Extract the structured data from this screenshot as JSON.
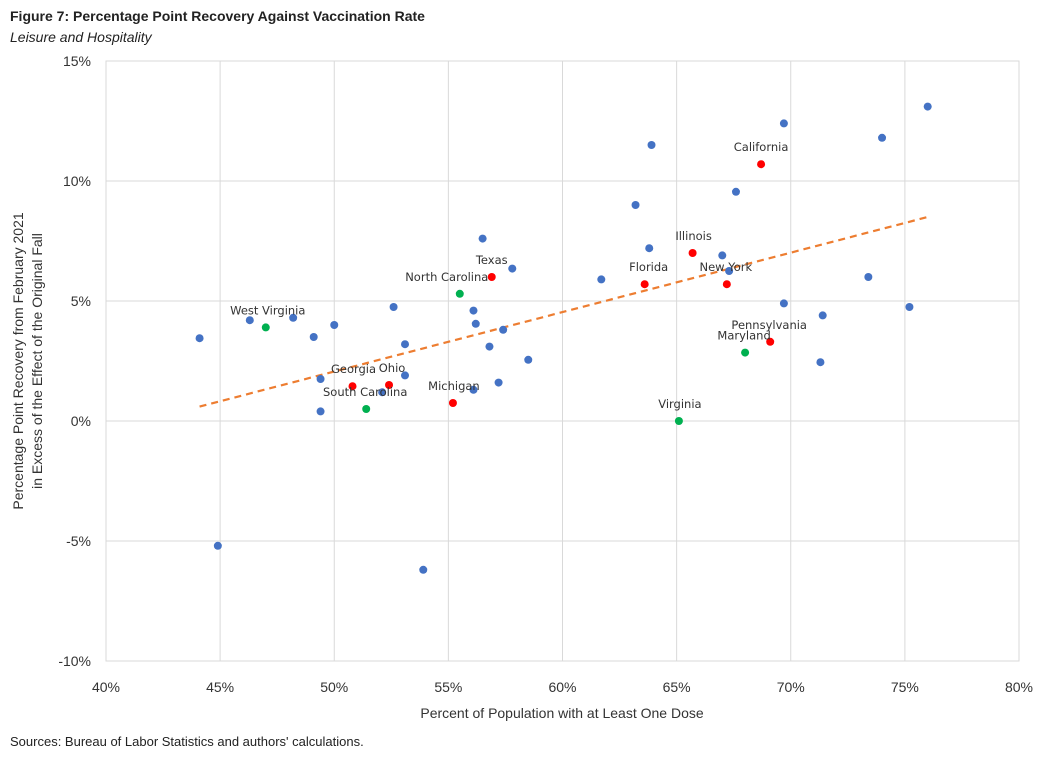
{
  "figure": {
    "title": "Figure 7: Percentage Point Recovery Against Vaccination Rate",
    "subtitle": "Leisure and Hospitality",
    "source": "Sources: Bureau of Labor Statistics and authors' calculations."
  },
  "chart_data": {
    "type": "scatter",
    "xlabel": "Percent of Population with at Least One Dose",
    "ylabel_lines": [
      "Percentage Point Recovery from February 2021",
      "in Excess of the Effect of the Original Fall"
    ],
    "xlim": [
      40,
      80
    ],
    "ylim": [
      -10,
      15
    ],
    "x_ticks": [
      40,
      45,
      50,
      55,
      60,
      65,
      70,
      75,
      80
    ],
    "x_tick_labels": [
      "40%",
      "45%",
      "50%",
      "55%",
      "60%",
      "65%",
      "70%",
      "75%",
      "80%"
    ],
    "y_ticks": [
      15,
      10,
      5,
      0,
      -5,
      -10
    ],
    "y_tick_labels": [
      "15%",
      "10%",
      "5%",
      "0%",
      "-5%",
      "-10%"
    ],
    "grid": true,
    "colors": {
      "other": "#4472c4",
      "highlight": "#ff0000",
      "green": "#00b050",
      "trend": "#ed7d31",
      "grid": "#d9d9d9"
    },
    "trendline": {
      "x": [
        44.1,
        76.0
      ],
      "y": [
        0.6,
        8.5
      ]
    },
    "points": [
      {
        "x": 44.1,
        "y": 3.45,
        "group": "other"
      },
      {
        "x": 44.9,
        "y": -5.2,
        "group": "other"
      },
      {
        "x": 46.3,
        "y": 4.2,
        "group": "other"
      },
      {
        "x": 48.2,
        "y": 4.3,
        "group": "other"
      },
      {
        "x": 49.1,
        "y": 3.5,
        "group": "other"
      },
      {
        "x": 49.4,
        "y": 1.75,
        "group": "other"
      },
      {
        "x": 49.4,
        "y": 0.4,
        "group": "other"
      },
      {
        "x": 50.0,
        "y": 4.0,
        "group": "other"
      },
      {
        "x": 52.1,
        "y": 1.2,
        "group": "other"
      },
      {
        "x": 52.6,
        "y": 4.75,
        "group": "other"
      },
      {
        "x": 53.1,
        "y": 3.2,
        "group": "other"
      },
      {
        "x": 53.1,
        "y": 1.9,
        "group": "other"
      },
      {
        "x": 53.9,
        "y": -6.2,
        "group": "other"
      },
      {
        "x": 56.1,
        "y": 4.6,
        "group": "other"
      },
      {
        "x": 56.2,
        "y": 4.05,
        "group": "other"
      },
      {
        "x": 56.1,
        "y": 1.3,
        "group": "other"
      },
      {
        "x": 56.5,
        "y": 7.6,
        "group": "other"
      },
      {
        "x": 56.8,
        "y": 3.1,
        "group": "other"
      },
      {
        "x": 57.2,
        "y": 1.6,
        "group": "other"
      },
      {
        "x": 57.4,
        "y": 3.8,
        "group": "other"
      },
      {
        "x": 57.8,
        "y": 6.35,
        "group": "other"
      },
      {
        "x": 58.5,
        "y": 2.55,
        "group": "other"
      },
      {
        "x": 61.7,
        "y": 5.9,
        "group": "other"
      },
      {
        "x": 63.2,
        "y": 9.0,
        "group": "other"
      },
      {
        "x": 63.8,
        "y": 7.2,
        "group": "other"
      },
      {
        "x": 63.9,
        "y": 11.5,
        "group": "other"
      },
      {
        "x": 67.0,
        "y": 6.9,
        "group": "other"
      },
      {
        "x": 67.3,
        "y": 6.25,
        "group": "other"
      },
      {
        "x": 67.6,
        "y": 9.55,
        "group": "other"
      },
      {
        "x": 69.7,
        "y": 12.4,
        "group": "other"
      },
      {
        "x": 69.7,
        "y": 4.9,
        "group": "other"
      },
      {
        "x": 71.3,
        "y": 2.45,
        "group": "other"
      },
      {
        "x": 71.4,
        "y": 4.4,
        "group": "other"
      },
      {
        "x": 73.4,
        "y": 6.0,
        "group": "other"
      },
      {
        "x": 74.0,
        "y": 11.8,
        "group": "other"
      },
      {
        "x": 75.2,
        "y": 4.75,
        "group": "other"
      },
      {
        "x": 76.0,
        "y": 13.1,
        "group": "other"
      },
      {
        "x": 47.0,
        "y": 3.9,
        "group": "green",
        "label": "West Virginia"
      },
      {
        "x": 55.5,
        "y": 5.3,
        "group": "green",
        "label": "North Carolina"
      },
      {
        "x": 51.4,
        "y": 0.5,
        "group": "green",
        "label": "South Carolina"
      },
      {
        "x": 65.1,
        "y": 0.0,
        "group": "green",
        "label": "Virginia"
      },
      {
        "x": 68.0,
        "y": 2.85,
        "group": "green",
        "label": "Maryland"
      },
      {
        "x": 50.8,
        "y": 1.45,
        "group": "highlight",
        "label": "Georgia"
      },
      {
        "x": 52.4,
        "y": 1.5,
        "group": "highlight",
        "label": "Ohio"
      },
      {
        "x": 55.2,
        "y": 0.75,
        "group": "highlight",
        "label": "Michigan"
      },
      {
        "x": 56.9,
        "y": 6.0,
        "group": "highlight",
        "label": "Texas"
      },
      {
        "x": 63.6,
        "y": 5.7,
        "group": "highlight",
        "label": "Florida"
      },
      {
        "x": 65.7,
        "y": 7.0,
        "group": "highlight",
        "label": "Illinois"
      },
      {
        "x": 67.2,
        "y": 5.7,
        "group": "highlight",
        "label": "New York"
      },
      {
        "x": 68.7,
        "y": 10.7,
        "group": "highlight",
        "label": "California"
      },
      {
        "x": 69.1,
        "y": 3.3,
        "group": "highlight",
        "label": "Pennsylvania"
      }
    ]
  }
}
